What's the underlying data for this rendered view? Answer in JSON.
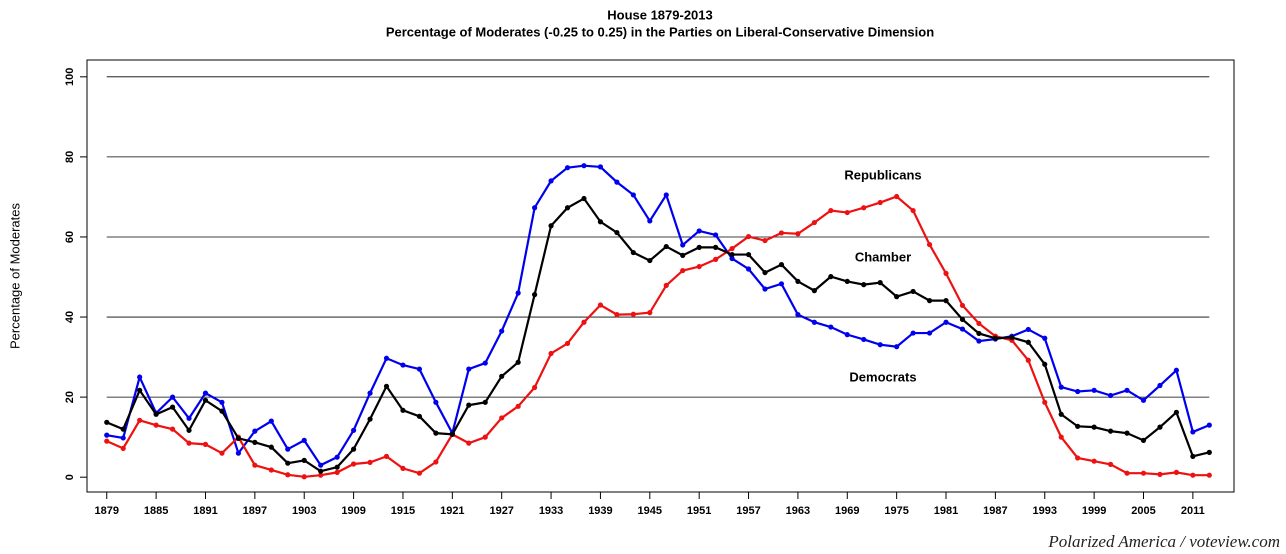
{
  "chart_data": {
    "type": "line",
    "title": "House 1879-2013",
    "subtitle": "Percentage of Moderates (-0.25 to 0.25) in the Parties on Liberal-Conservative Dimension",
    "y_label": "Percentage of Moderates",
    "source": "Polarized America / voteview.com",
    "x": [
      1879,
      1881,
      1883,
      1885,
      1887,
      1889,
      1891,
      1893,
      1895,
      1897,
      1899,
      1901,
      1903,
      1905,
      1907,
      1909,
      1911,
      1913,
      1915,
      1917,
      1919,
      1921,
      1923,
      1925,
      1927,
      1929,
      1931,
      1933,
      1935,
      1937,
      1939,
      1941,
      1943,
      1945,
      1947,
      1949,
      1951,
      1953,
      1955,
      1957,
      1959,
      1961,
      1963,
      1965,
      1967,
      1969,
      1971,
      1973,
      1975,
      1977,
      1979,
      1981,
      1983,
      1985,
      1987,
      1989,
      1991,
      1993,
      1995,
      1997,
      1999,
      2001,
      2003,
      2005,
      2007,
      2009,
      2011,
      2013
    ],
    "series": [
      {
        "name": "Democrats",
        "color": "#0000ee",
        "values": [
          10.5,
          9.8,
          25,
          16,
          20,
          14.7,
          21,
          18.7,
          6,
          11.5,
          14,
          7,
          9.2,
          3,
          5,
          11.7,
          21,
          29.7,
          28,
          27,
          18.7,
          11,
          27,
          28.5,
          36.5,
          46,
          67.3,
          74,
          77.3,
          77.8,
          77.5,
          73.7,
          70.5,
          64,
          70.5,
          58,
          61.5,
          60.5,
          54.6,
          52,
          47,
          48.3,
          40.6,
          38.7,
          37.5,
          35.6,
          34.4,
          33.1,
          32.6,
          36,
          36,
          38.7,
          37,
          34,
          34.5,
          35.2,
          36.9,
          34.7,
          22.5,
          21.4,
          21.7,
          20.4,
          21.7,
          19.2,
          22.9,
          26.7,
          11.3,
          13
        ]
      },
      {
        "name": "Republicans",
        "color": "#ee1111",
        "values": [
          9,
          7.2,
          14.2,
          13,
          12,
          8.5,
          8.2,
          6,
          10,
          3,
          1.8,
          0.6,
          0.1,
          0.5,
          1.2,
          3.3,
          3.7,
          5.2,
          2.2,
          1,
          3.8,
          10.7,
          8.5,
          10,
          14.8,
          17.7,
          22.4,
          30.9,
          33.4,
          38.7,
          43,
          40.6,
          40.7,
          41.1,
          47.9,
          51.6,
          52.6,
          54.4,
          57.1,
          60.1,
          59.1,
          61,
          60.8,
          63.6,
          66.6,
          66.1,
          67.3,
          68.6,
          70.1,
          66.6,
          58.1,
          50.9,
          42.9,
          38.4,
          35.2,
          34.2,
          29.2,
          18.7,
          10,
          4.8,
          4,
          3.2,
          1,
          1,
          0.7,
          1.2,
          0.5,
          0.5
        ]
      },
      {
        "name": "Chamber",
        "color": "#000000",
        "values": [
          13.7,
          12,
          21.7,
          15.7,
          17.5,
          11.7,
          19.2,
          16.5,
          9.7,
          8.7,
          7.5,
          3.5,
          4.2,
          1.5,
          2.5,
          7,
          14.5,
          22.7,
          16.7,
          15.2,
          11,
          10.7,
          18,
          18.7,
          25.2,
          28.7,
          45.6,
          62.8,
          67.3,
          69.6,
          63.8,
          61.1,
          56.1,
          54.1,
          57.6,
          55.4,
          57.4,
          57.4,
          55.6,
          55.6,
          51.1,
          53.1,
          48.9,
          46.6,
          50.1,
          48.9,
          48.1,
          48.6,
          45.1,
          46.4,
          44.1,
          44.1,
          39.4,
          35.9,
          34.7,
          34.9,
          33.7,
          28.2,
          15.7,
          12.7,
          12.5,
          11.5,
          11,
          9.2,
          12.5,
          16.2,
          5.2,
          6.2
        ]
      }
    ],
    "xlim": [
      1876.6,
      2016
    ],
    "xticks": [
      1879,
      1885,
      1891,
      1897,
      1903,
      1909,
      1915,
      1921,
      1927,
      1933,
      1939,
      1945,
      1951,
      1957,
      1963,
      1969,
      1975,
      1981,
      1987,
      1993,
      1999,
      2005,
      2011
    ],
    "ylim": [
      -3.7,
      104.2
    ],
    "yticks": [
      0,
      20,
      40,
      60,
      80,
      100
    ],
    "grid": true
  }
}
